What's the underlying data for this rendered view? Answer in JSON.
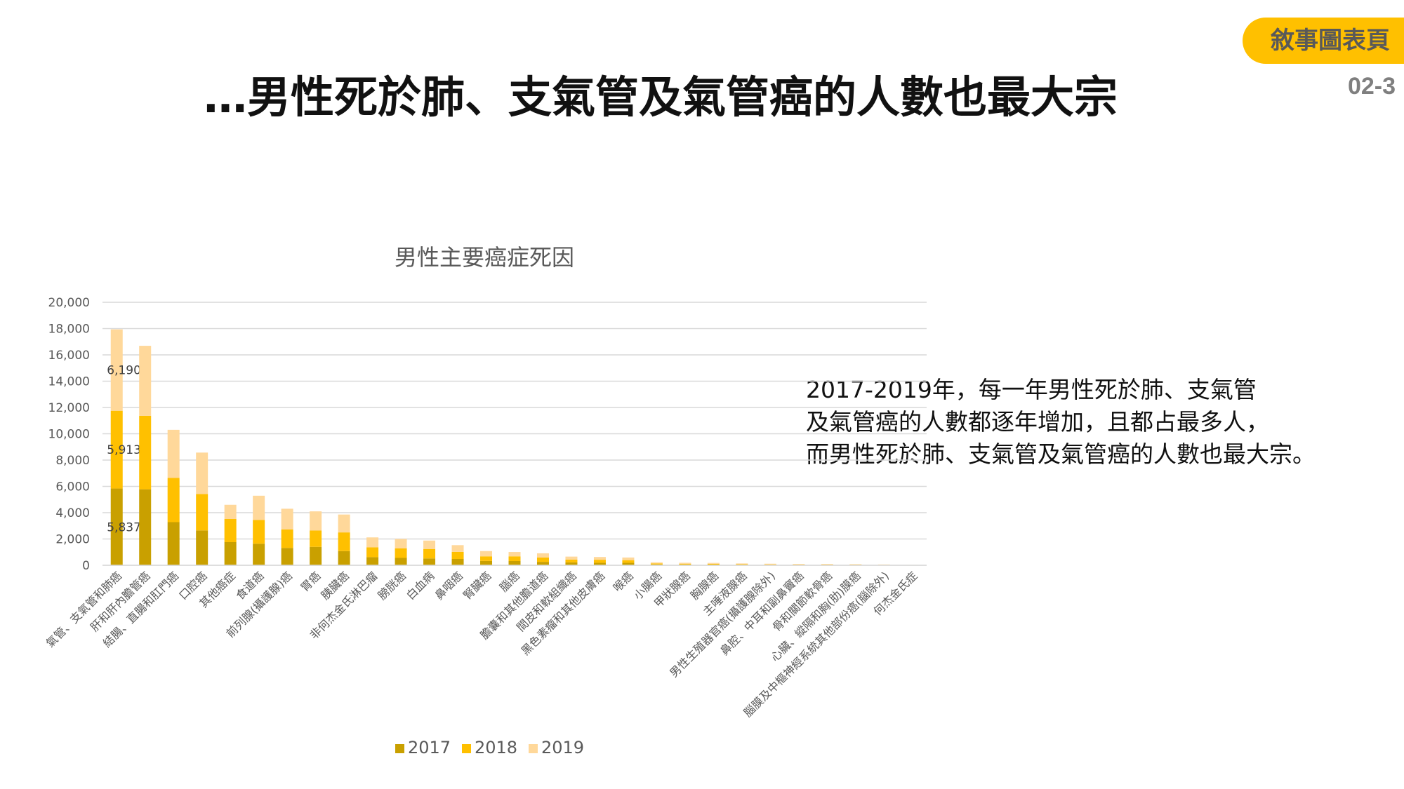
{
  "slide": {
    "badge": "敘事圖表頁",
    "page_number": "02-3",
    "title": "…男性死於肺、支氣管及氣管癌的人數也最大宗",
    "narrative": [
      "2017-2019年，每一年男性死於肺、支氣管",
      "及氣管癌的人數都逐年增加，且都占最多人，",
      "而男性死於肺、支氣管及氣管癌的人數也最大宗。"
    ]
  },
  "colors": {
    "badge": "#FFC000",
    "2017": "#C9A000",
    "2018": "#FFC000",
    "2019": "#FFD89A",
    "grid": "#D9D9D9",
    "axis_text": "#595959"
  },
  "chart_data": {
    "type": "bar",
    "stacked": true,
    "title": "男性主要癌症死因",
    "xlabel": "",
    "ylabel": "",
    "ylim": [
      0,
      20000
    ],
    "yticks": [
      "0",
      "2,000",
      "4,000",
      "6,000",
      "8,000",
      "10,000",
      "12,000",
      "14,000",
      "16,000",
      "18,000",
      "20,000"
    ],
    "grid": true,
    "legend_position": "bottom",
    "categories": [
      "氣管、支氣管和肺癌",
      "肝和肝內膽管癌",
      "結腸、直腸和肛門癌",
      "口腔癌",
      "其他癌症",
      "食道癌",
      "前列腺(攝護腺)癌",
      "胃癌",
      "胰臟癌",
      "非何杰金氏淋巴瘤",
      "膀胱癌",
      "白血病",
      "鼻咽癌",
      "腎臟癌",
      "腦癌",
      "膽囊和其他膽道癌",
      "間皮和軟組織癌",
      "黑色素瘤和其他皮膚癌",
      "喉癌",
      "小腸癌",
      "甲狀腺癌",
      "胸腺癌",
      "主唾液腺癌",
      "男性生殖器官癌(攝護腺除外)",
      "鼻腔、中耳和副鼻竇癌",
      "骨和關節軟骨癌",
      "心臟、縱隔和胸(肋)膜癌",
      "腦膜及中樞神經系統其他部份癌(腦除外)",
      "何杰金氏症"
    ],
    "series": [
      {
        "name": "2017",
        "values": [
          5837,
          5780,
          3280,
          2650,
          1760,
          1640,
          1320,
          1400,
          1080,
          620,
          560,
          520,
          480,
          330,
          320,
          260,
          220,
          190,
          190,
          70,
          60,
          50,
          40,
          30,
          30,
          25,
          25,
          20,
          10
        ]
      },
      {
        "name": "2018",
        "values": [
          5913,
          5590,
          3360,
          2770,
          1760,
          1800,
          1400,
          1240,
          1420,
          750,
          720,
          720,
          540,
          350,
          360,
          330,
          210,
          230,
          200,
          70,
          60,
          60,
          50,
          40,
          30,
          30,
          25,
          20,
          10
        ]
      },
      {
        "name": "2019",
        "values": [
          6190,
          5320,
          3660,
          3150,
          1080,
          1850,
          1580,
          1460,
          1360,
          750,
          720,
          640,
          510,
          400,
          330,
          320,
          230,
          210,
          200,
          80,
          70,
          70,
          50,
          50,
          40,
          40,
          30,
          20,
          10
        ]
      }
    ],
    "data_labels": [
      {
        "category": "氣管、支氣管和肺癌",
        "series": "2017",
        "text": "5,837"
      },
      {
        "category": "氣管、支氣管和肺癌",
        "series": "2018",
        "text": "5,913"
      },
      {
        "category": "氣管、支氣管和肺癌",
        "series": "2019",
        "text": "6,190"
      }
    ]
  }
}
